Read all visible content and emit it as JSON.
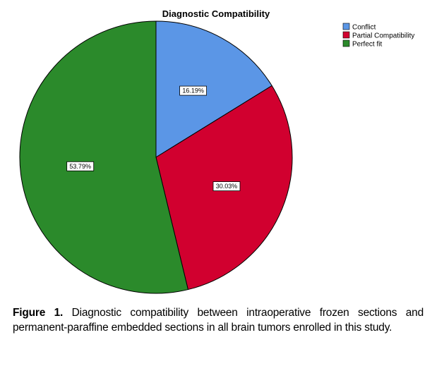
{
  "chart_data": {
    "type": "pie",
    "title": "Diagnostic Compatibility",
    "categories": [
      "Conflict",
      "Partial Compatibility",
      "Perfect fit"
    ],
    "values": [
      16.19,
      30.03,
      53.79
    ],
    "labels": [
      "16.19%",
      "30.03%",
      "53.79%"
    ],
    "colors": [
      "#5b96e6",
      "#d1002f",
      "#2b8a2b"
    ],
    "start_angle_deg": 0,
    "direction": "clockwise",
    "legend": "top-right"
  },
  "caption": {
    "label": "Figure 1.",
    "text": " Diagnostic compatibility between intraoperative frozen sections and permanent-paraffine embedded sections in all brain tumors enrolled in this study."
  }
}
